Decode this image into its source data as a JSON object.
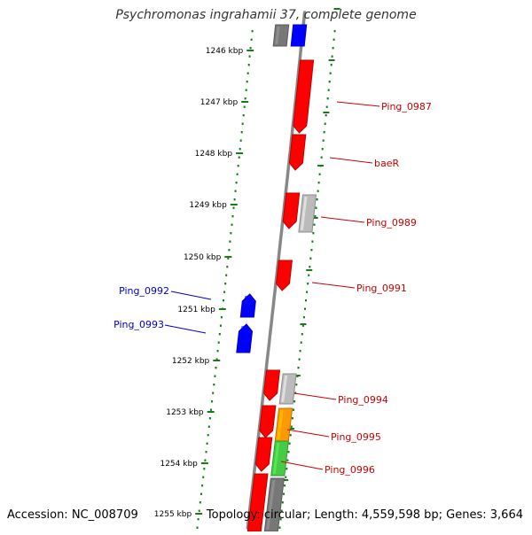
{
  "title": "Psychromonas ingrahamii 37, complete genome",
  "accession": "Accession: NC_008709",
  "summary": "Topology: circular; Length: 4,559,598 bp; Genes: 3,664",
  "scale_labels": [
    "1246 kbp",
    "1247 kbp",
    "1248 kbp",
    "1249 kbp",
    "1250 kbp",
    "1251 kbp",
    "1252 kbp",
    "1253 kbp",
    "1254 kbp",
    "1255 kbp"
  ],
  "colors": {
    "forward_gene": "#ff0000",
    "reverse_gene": "#0000ff",
    "other_gene_gray": "#777777",
    "rna_gene": "#bbbbbb",
    "orange_gene": "#ff9900",
    "green_gene": "#44cc44",
    "magenta_gene": "#cc22cc",
    "backbone": "#888888",
    "ruler": "#1a7a1a",
    "forward_label": "#cc0000",
    "reverse_label": "#0000cc"
  },
  "labels": {
    "forward": [
      "Ping_0987",
      "baeR",
      "Ping_0989",
      "Ping_0991",
      "Ping_0994",
      "Ping_0995",
      "Ping_0996"
    ],
    "reverse": [
      "Ping_0992",
      "Ping_0993"
    ]
  }
}
